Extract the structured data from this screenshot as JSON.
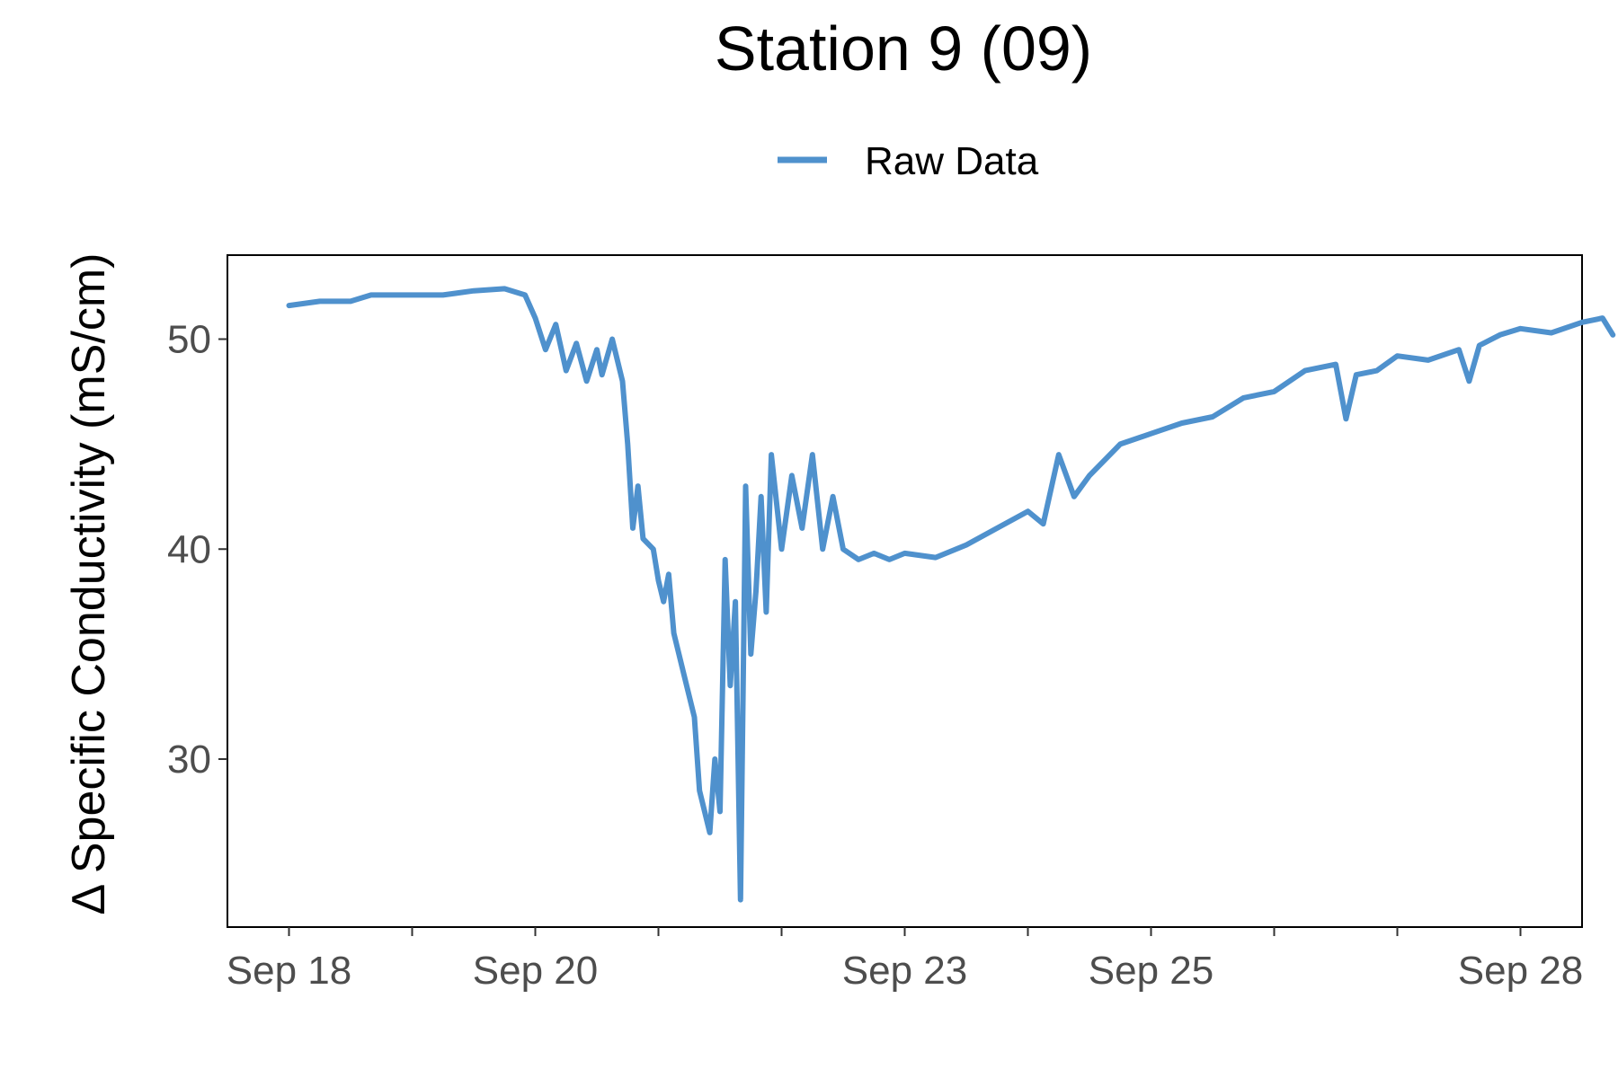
{
  "chart_data": {
    "type": "line",
    "title": "Station 9 (09)",
    "xlabel": "",
    "ylabel": "Δ Specific Conductivity (mS/cm)",
    "x_axis": {
      "type": "date",
      "range": [
        "2023-09-17T12:00",
        "2023-09-28T12:00"
      ],
      "ticks": [
        "2023-09-18",
        "2023-09-19",
        "2023-09-20",
        "2023-09-21",
        "2023-09-22",
        "2023-09-23",
        "2023-09-24",
        "2023-09-25",
        "2023-09-26",
        "2023-09-27",
        "2023-09-28"
      ],
      "tick_labels": [
        "Sep 18",
        "",
        "Sep 20",
        "",
        "",
        "Sep 23",
        "",
        "Sep 25",
        "",
        "",
        "Sep 28"
      ]
    },
    "y_axis": {
      "range": [
        22,
        54
      ],
      "ticks": [
        30,
        40,
        50
      ],
      "tick_labels": [
        "30",
        "40",
        "50"
      ]
    },
    "grid": false,
    "legend": {
      "position": "top",
      "entries": [
        "Raw Data"
      ]
    },
    "series": [
      {
        "name": "Raw Data",
        "color": "#4f91cd",
        "points": [
          [
            "2023-09-18T00:00",
            51.6
          ],
          [
            "2023-09-18T06:00",
            51.8
          ],
          [
            "2023-09-18T12:00",
            51.8
          ],
          [
            "2023-09-18T16:00",
            52.1
          ],
          [
            "2023-09-18T22:00",
            52.1
          ],
          [
            "2023-09-19T06:00",
            52.1
          ],
          [
            "2023-09-19T12:00",
            52.3
          ],
          [
            "2023-09-19T18:00",
            52.4
          ],
          [
            "2023-09-19T22:00",
            52.1
          ],
          [
            "2023-09-20T00:00",
            51.0
          ],
          [
            "2023-09-20T02:00",
            49.5
          ],
          [
            "2023-09-20T04:00",
            50.7
          ],
          [
            "2023-09-20T06:00",
            48.5
          ],
          [
            "2023-09-20T08:00",
            49.8
          ],
          [
            "2023-09-20T10:00",
            48.0
          ],
          [
            "2023-09-20T12:00",
            49.5
          ],
          [
            "2023-09-20T13:00",
            48.3
          ],
          [
            "2023-09-20T15:00",
            50.0
          ],
          [
            "2023-09-20T17:00",
            48.0
          ],
          [
            "2023-09-20T18:00",
            45.0
          ],
          [
            "2023-09-20T19:00",
            41.0
          ],
          [
            "2023-09-20T20:00",
            43.0
          ],
          [
            "2023-09-20T21:00",
            40.5
          ],
          [
            "2023-09-20T23:00",
            40.0
          ],
          [
            "2023-09-21T00:00",
            38.5
          ],
          [
            "2023-09-21T01:00",
            37.5
          ],
          [
            "2023-09-21T02:00",
            38.8
          ],
          [
            "2023-09-21T03:00",
            36.0
          ],
          [
            "2023-09-21T05:00",
            34.0
          ],
          [
            "2023-09-21T07:00",
            32.0
          ],
          [
            "2023-09-21T08:00",
            28.5
          ],
          [
            "2023-09-21T09:00",
            27.5
          ],
          [
            "2023-09-21T10:00",
            26.5
          ],
          [
            "2023-09-21T11:00",
            30.0
          ],
          [
            "2023-09-21T12:00",
            27.5
          ],
          [
            "2023-09-21T13:00",
            39.5
          ],
          [
            "2023-09-21T14:00",
            33.5
          ],
          [
            "2023-09-21T15:00",
            37.5
          ],
          [
            "2023-09-21T16:00",
            23.3
          ],
          [
            "2023-09-21T17:00",
            43.0
          ],
          [
            "2023-09-21T18:00",
            35.0
          ],
          [
            "2023-09-21T19:00",
            38.0
          ],
          [
            "2023-09-21T20:00",
            42.5
          ],
          [
            "2023-09-21T21:00",
            37.0
          ],
          [
            "2023-09-21T22:00",
            44.5
          ],
          [
            "2023-09-22T00:00",
            40.0
          ],
          [
            "2023-09-22T02:00",
            43.5
          ],
          [
            "2023-09-22T04:00",
            41.0
          ],
          [
            "2023-09-22T06:00",
            44.5
          ],
          [
            "2023-09-22T08:00",
            40.0
          ],
          [
            "2023-09-22T10:00",
            42.5
          ],
          [
            "2023-09-22T12:00",
            40.0
          ],
          [
            "2023-09-22T15:00",
            39.5
          ],
          [
            "2023-09-22T18:00",
            39.8
          ],
          [
            "2023-09-22T21:00",
            39.5
          ],
          [
            "2023-09-23T00:00",
            39.8
          ],
          [
            "2023-09-23T06:00",
            39.6
          ],
          [
            "2023-09-23T12:00",
            40.2
          ],
          [
            "2023-09-23T18:00",
            41.0
          ],
          [
            "2023-09-24T00:00",
            41.8
          ],
          [
            "2023-09-24T03:00",
            41.2
          ],
          [
            "2023-09-24T06:00",
            44.5
          ],
          [
            "2023-09-24T09:00",
            42.5
          ],
          [
            "2023-09-24T12:00",
            43.5
          ],
          [
            "2023-09-24T18:00",
            45.0
          ],
          [
            "2023-09-25T00:00",
            45.5
          ],
          [
            "2023-09-25T06:00",
            46.0
          ],
          [
            "2023-09-25T12:00",
            46.3
          ],
          [
            "2023-09-25T18:00",
            47.2
          ],
          [
            "2023-09-26T00:00",
            47.5
          ],
          [
            "2023-09-26T06:00",
            48.5
          ],
          [
            "2023-09-26T12:00",
            48.8
          ],
          [
            "2023-09-26T14:00",
            46.2
          ],
          [
            "2023-09-26T16:00",
            48.3
          ],
          [
            "2023-09-26T20:00",
            48.5
          ],
          [
            "2023-09-27T00:00",
            49.2
          ],
          [
            "2023-09-27T06:00",
            49.0
          ],
          [
            "2023-09-27T12:00",
            49.5
          ],
          [
            "2023-09-27T14:00",
            48.0
          ],
          [
            "2023-09-27T16:00",
            49.7
          ],
          [
            "2023-09-27T20:00",
            50.2
          ],
          [
            "2023-09-28T00:00",
            50.5
          ],
          [
            "2023-09-28T06:00",
            50.3
          ],
          [
            "2023-09-28T12:00",
            50.8
          ],
          [
            "2023-09-28T16:00",
            51.0
          ],
          [
            "2023-09-28T18:00",
            50.2
          ]
        ]
      }
    ]
  }
}
